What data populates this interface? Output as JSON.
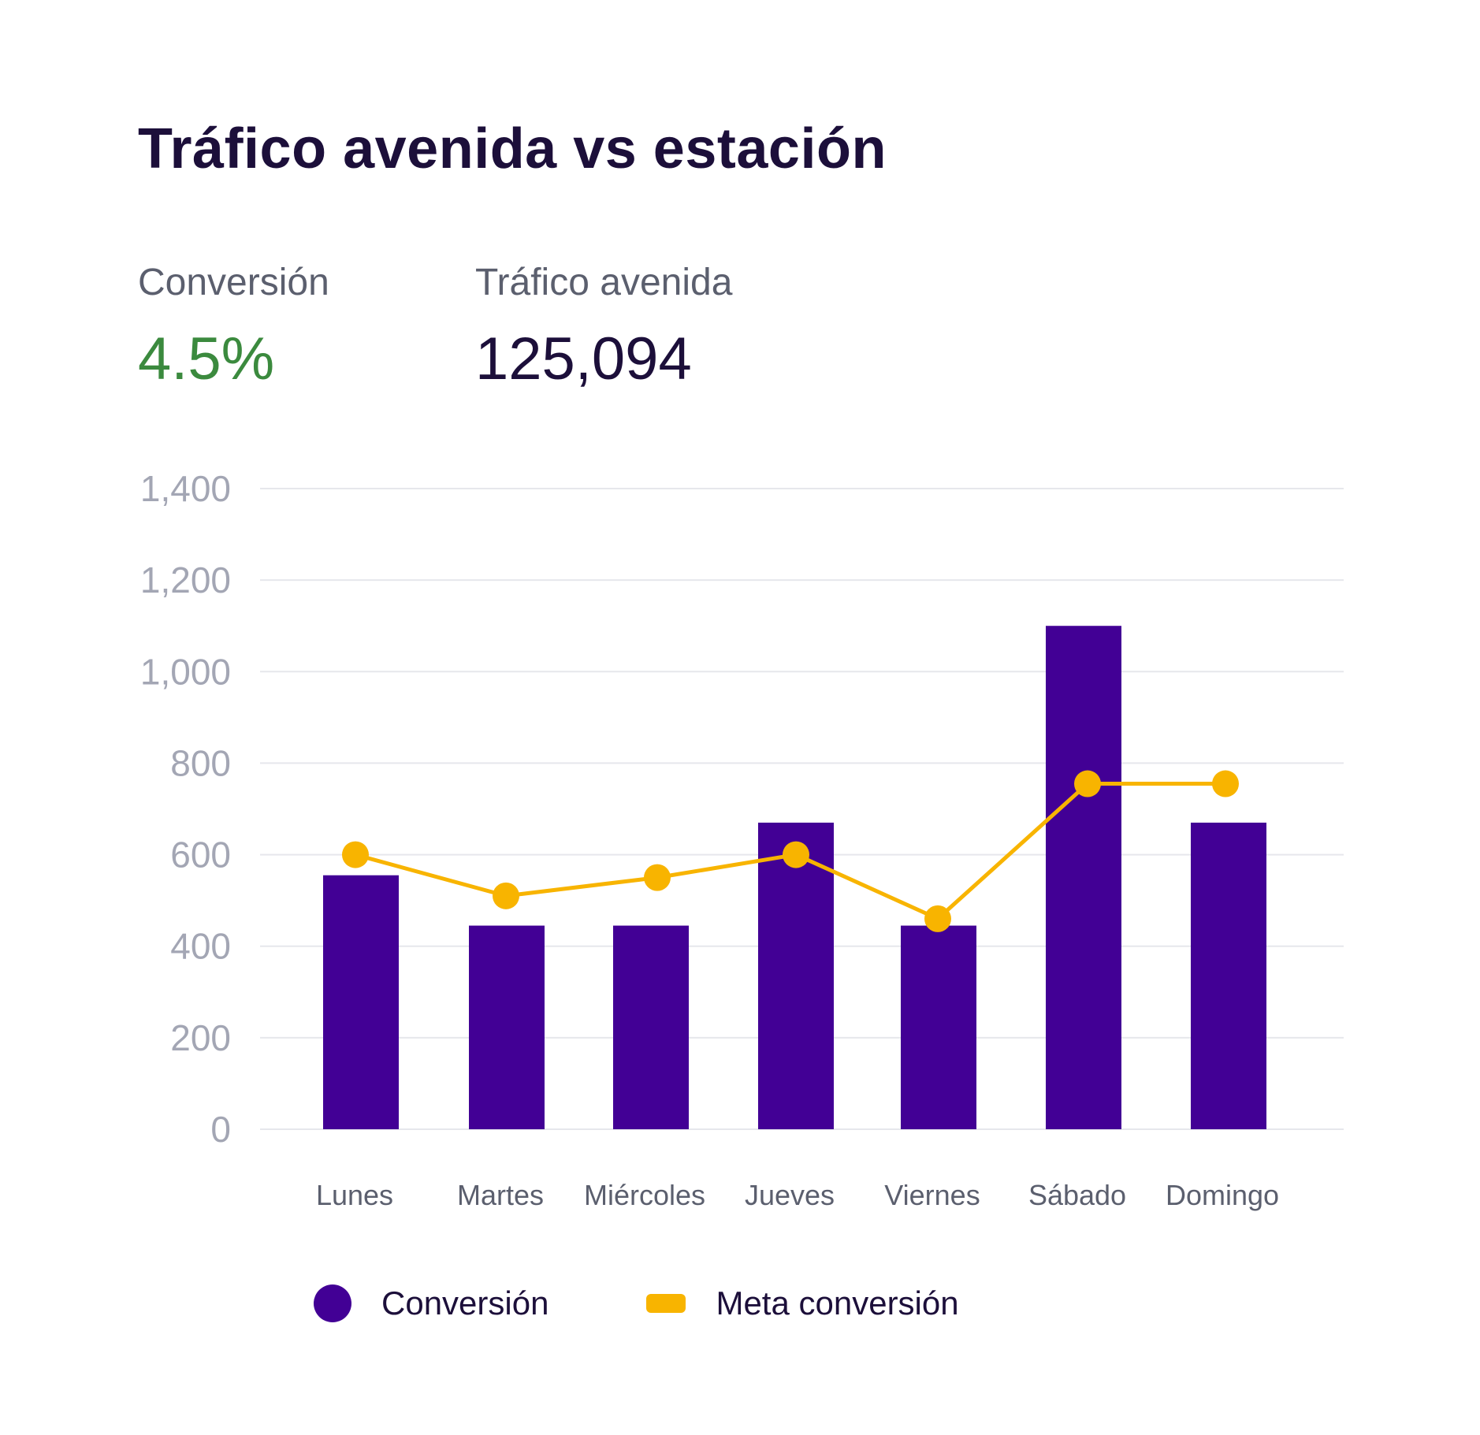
{
  "title": "Tráfico avenida vs estación",
  "kpis": [
    {
      "label": "Conversión",
      "value": "4.5%",
      "color": "#3b8a3e"
    },
    {
      "label": "Tráfico avenida",
      "value": "125,094",
      "color": "#1c0f3a"
    }
  ],
  "chart_data": {
    "type": "bar",
    "title": "Tráfico avenida vs estación",
    "xlabel": "",
    "ylabel": "",
    "categories": [
      "Lunes",
      "Martes",
      "Miércoles",
      "Jueves",
      "Viernes",
      "Sábado",
      "Domingo"
    ],
    "ylim": [
      0,
      1400
    ],
    "yticks": [
      0,
      200,
      400,
      600,
      800,
      1000,
      1200,
      1400
    ],
    "ytick_labels": [
      "0",
      "200",
      "400",
      "600",
      "800",
      "1,000",
      "1,200",
      "1,400"
    ],
    "grid": true,
    "legend_position": "bottom-left",
    "series": [
      {
        "name": "Conversión",
        "type": "bar",
        "color": "#420095",
        "values": [
          555,
          445,
          445,
          670,
          445,
          1100,
          670
        ]
      },
      {
        "name": "Meta conversión",
        "type": "line",
        "color": "#f8b400",
        "values": [
          600,
          510,
          550,
          600,
          460,
          755,
          755
        ]
      }
    ]
  },
  "legend": {
    "items": [
      {
        "label": "Conversión",
        "color": "#420095"
      },
      {
        "label": "Meta conversión",
        "color": "#f8b400"
      }
    ]
  }
}
